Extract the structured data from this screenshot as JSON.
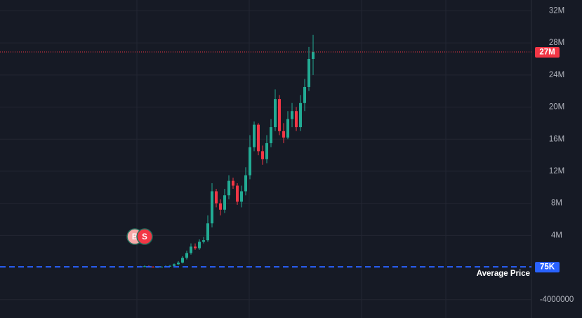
{
  "chart_data": {
    "type": "candlestick",
    "up_color": "#22ab94",
    "down_color": "#f23645",
    "open": [
      80000,
      100000,
      150000,
      100000,
      50000,
      50000,
      100000,
      150000,
      200000,
      400000,
      600000,
      1200000,
      1800000,
      2600000,
      2400000,
      3200000,
      3400000,
      5500000,
      9500000,
      8000000,
      7200000,
      9000000,
      10800000,
      10200000,
      8200000,
      9500000,
      11500000,
      15000000,
      17800000,
      14500000,
      13500000,
      15500000,
      17500000,
      21000000,
      17000000,
      16200000,
      18500000,
      19500000,
      17500000,
      20500000,
      22500000,
      26000000
    ],
    "high": [
      200000,
      250000,
      250000,
      150000,
      100000,
      150000,
      250000,
      300000,
      500000,
      800000,
      1400000,
      2100000,
      3000000,
      3000000,
      3500000,
      3800000,
      6500000,
      10500000,
      9800000,
      8500000,
      9800000,
      11500000,
      11200000,
      10500000,
      10200000,
      12500000,
      16500000,
      18200000,
      18000000,
      15200000,
      16500000,
      18500000,
      22200000,
      21500000,
      18000000,
      19500000,
      20500000,
      20000000,
      21500000,
      23500000,
      27500000,
      29000000
    ],
    "low": [
      50000,
      50000,
      50000,
      0,
      0,
      0,
      50000,
      100000,
      150000,
      300000,
      500000,
      1000000,
      1600000,
      2200000,
      2200000,
      3000000,
      3200000,
      5000000,
      7500000,
      6500000,
      6800000,
      8500000,
      9800000,
      7800000,
      7500000,
      9000000,
      11000000,
      14500000,
      14000000,
      12800000,
      13000000,
      15000000,
      17000000,
      16500000,
      15500000,
      16000000,
      17500000,
      17000000,
      17000000,
      19500000,
      22000000,
      24000000
    ],
    "close": [
      100000,
      150000,
      100000,
      50000,
      50000,
      100000,
      150000,
      200000,
      400000,
      600000,
      1200000,
      1800000,
      2600000,
      2400000,
      3200000,
      3400000,
      5500000,
      9500000,
      8000000,
      7200000,
      9000000,
      10800000,
      10200000,
      8200000,
      9500000,
      11500000,
      15000000,
      17800000,
      14500000,
      13500000,
      15500000,
      17500000,
      21000000,
      17000000,
      16200000,
      18500000,
      19500000,
      17500000,
      20500000,
      22500000,
      26000000,
      26870000
    ],
    "ylim": [
      -6300000,
      33350000
    ],
    "yticks": [
      -4000000,
      {
        "value": 4000000,
        "label": "4M"
      },
      {
        "value": 8000000,
        "label": "8M"
      },
      {
        "value": 12000000,
        "label": "12M"
      },
      {
        "value": 16000000,
        "label": "16M"
      },
      {
        "value": 20000000,
        "label": "20M"
      },
      {
        "value": 24000000,
        "label": "24M"
      },
      {
        "value": 28000000,
        "label": "28M"
      },
      {
        "value": 32000000,
        "label": "32M"
      }
    ],
    "grid": true,
    "price_lines": [
      {
        "value": 26870000,
        "label": "27M",
        "color": "#f23645",
        "style": "dotted"
      },
      {
        "value": 75000,
        "label": "75K",
        "color": "#2962ff",
        "style": "dashed",
        "name": "Average Price"
      }
    ],
    "markers": [
      {
        "label": "B",
        "value": 3850000,
        "color": "#f7a8a8"
      },
      {
        "label": "S",
        "value": 3850000,
        "color": "#f23645"
      }
    ]
  }
}
